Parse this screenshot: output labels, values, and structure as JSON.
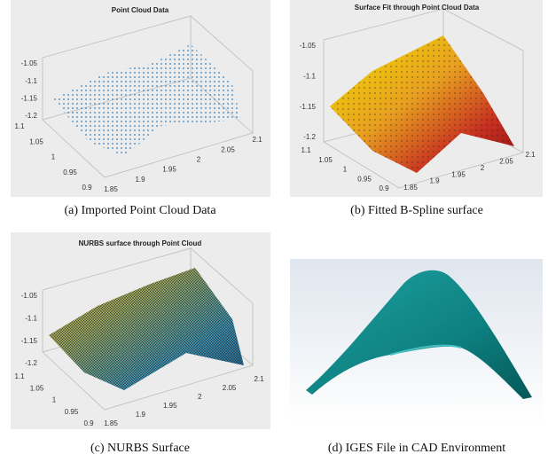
{
  "figure": {
    "panels": [
      {
        "title": "Point Cloud Data",
        "caption": "(a) Imported Point Cloud Data",
        "z_ticks": [
          "-1.05",
          "-1.1",
          "-1.15",
          "-1.2"
        ],
        "left_ticks": [
          "1.1",
          "1.05",
          "1",
          "0.95",
          "0.9"
        ],
        "right_ticks": [
          "1.85",
          "1.9",
          "1.95",
          "2",
          "2.05",
          "2.1"
        ]
      },
      {
        "title": "Surface Fit through Point Cloud Data",
        "caption": "(b) Fitted B-Spline surface",
        "z_ticks": [
          "-1.05",
          "-1.1",
          "-1.15",
          "-1.2"
        ],
        "left_ticks": [
          "1.1",
          "1.05",
          "1",
          "0.95",
          "0.9"
        ],
        "right_ticks": [
          "1.85",
          "1.9",
          "1.95",
          "2",
          "2.05",
          "2.1"
        ]
      },
      {
        "title": "NURBS surface through Point Cloud",
        "caption": "(c) NURBS Surface",
        "z_ticks": [
          "-1.05",
          "-1.1",
          "-1.15",
          "-1.2"
        ],
        "left_ticks": [
          "1.1",
          "1.05",
          "1",
          "0.95",
          "0.9"
        ],
        "right_ticks": [
          "1.85",
          "1.9",
          "1.95",
          "2",
          "2.05",
          "2.1"
        ]
      },
      {
        "caption": "(d) IGES File in CAD Environment"
      }
    ]
  }
}
